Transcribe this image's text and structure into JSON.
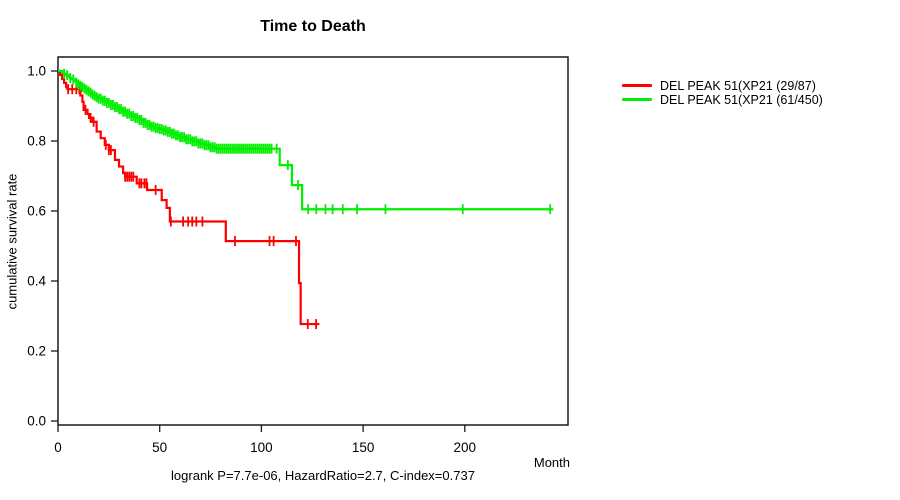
{
  "chart_data": {
    "type": "line",
    "subtype": "kaplan-meier-step-survival",
    "title": "Time to Death",
    "xlabel": "Month",
    "ylabel": "cumulative survival rate",
    "annotation": "logrank P=7.7e-06, HazardRatio=2.7, C-index=0.737",
    "xlim": [
      0,
      250
    ],
    "ylim": [
      0,
      1
    ],
    "x_ticks": [
      0,
      50,
      100,
      150,
      200
    ],
    "y_ticks": [
      0,
      0.2,
      0.4,
      0.6,
      0.8,
      1
    ],
    "grid": false,
    "legend_position": "right-outside",
    "series": [
      {
        "id": "group-1",
        "name": "DEL PEAK 51(XP21 (29/87)",
        "color": "#ff0000",
        "events_total": "29/87",
        "end_time": 128.5,
        "steps": [
          [
            0,
            1.0
          ],
          [
            1,
            0.989
          ],
          [
            2,
            0.977
          ],
          [
            3,
            0.966
          ],
          [
            4,
            0.954
          ],
          [
            4.6,
            0.948
          ],
          [
            11,
            0.93
          ],
          [
            12,
            0.912
          ],
          [
            12.6,
            0.889
          ],
          [
            14.5,
            0.877
          ],
          [
            15.3,
            0.866
          ],
          [
            17,
            0.855
          ],
          [
            19,
            0.827
          ],
          [
            21,
            0.808
          ],
          [
            23,
            0.789
          ],
          [
            25,
            0.774
          ],
          [
            28,
            0.746
          ],
          [
            30,
            0.727
          ],
          [
            32,
            0.708
          ],
          [
            33,
            0.698
          ],
          [
            38.7,
            0.679
          ],
          [
            43.8,
            0.66
          ],
          [
            51,
            0.631
          ],
          [
            53.4,
            0.609
          ],
          [
            55,
            0.57
          ],
          [
            82.5,
            0.514
          ],
          [
            118.5,
            0.394
          ],
          [
            119.3,
            0.277
          ]
        ],
        "censor_times": [
          5,
          7,
          9,
          10.5,
          13.5,
          16,
          17.5,
          23.5,
          25,
          26,
          33,
          34,
          35,
          36,
          37,
          40,
          41,
          42.5,
          43.5,
          48,
          55.5,
          61.5,
          64,
          66,
          68,
          71,
          87,
          104,
          106,
          117,
          122.8,
          126.9
        ]
      },
      {
        "id": "group-2",
        "name": "DEL PEAK 51(XP21 (61/450)",
        "color": "#00ee00",
        "events_total": "61/450",
        "end_time": 243.5,
        "steps": [
          [
            0,
            1.0
          ],
          [
            2,
            0.996
          ],
          [
            3,
            0.992
          ],
          [
            4,
            0.988
          ],
          [
            5,
            0.984
          ],
          [
            6,
            0.98
          ],
          [
            7,
            0.976
          ],
          [
            8,
            0.971
          ],
          [
            9,
            0.967
          ],
          [
            10,
            0.962
          ],
          [
            11,
            0.958
          ],
          [
            12,
            0.954
          ],
          [
            13,
            0.95
          ],
          [
            14,
            0.946
          ],
          [
            15,
            0.942
          ],
          [
            16,
            0.938
          ],
          [
            17,
            0.933
          ],
          [
            18,
            0.929
          ],
          [
            19,
            0.925
          ],
          [
            20,
            0.921
          ],
          [
            22,
            0.915
          ],
          [
            24,
            0.909
          ],
          [
            26,
            0.903
          ],
          [
            28,
            0.897
          ],
          [
            30,
            0.891
          ],
          [
            32,
            0.884
          ],
          [
            34,
            0.878
          ],
          [
            36,
            0.871
          ],
          [
            38,
            0.866
          ],
          [
            40,
            0.86
          ],
          [
            42,
            0.852
          ],
          [
            44,
            0.846
          ],
          [
            46,
            0.841
          ],
          [
            48,
            0.837
          ],
          [
            50,
            0.834
          ],
          [
            52,
            0.83
          ],
          [
            54,
            0.826
          ],
          [
            56,
            0.821
          ],
          [
            58,
            0.816
          ],
          [
            60,
            0.811
          ],
          [
            63,
            0.805
          ],
          [
            66,
            0.799
          ],
          [
            69,
            0.793
          ],
          [
            72,
            0.788
          ],
          [
            75,
            0.782
          ],
          [
            78,
            0.778
          ],
          [
            109,
            0.731
          ],
          [
            115,
            0.674
          ],
          [
            120,
            0.605
          ]
        ],
        "censor_times": [
          3,
          4.5,
          6,
          7.5,
          9,
          10,
          11,
          12,
          13,
          14,
          15,
          16,
          17,
          18,
          19,
          20,
          21,
          22,
          23,
          24,
          25,
          26,
          27,
          28,
          29,
          30,
          31,
          32,
          33,
          34,
          35,
          36,
          37,
          38,
          39,
          40,
          41,
          42,
          43,
          44,
          45,
          46,
          47,
          48,
          49,
          50,
          51,
          52,
          53,
          54,
          55,
          56,
          57,
          58,
          59,
          60,
          61,
          62,
          63,
          64,
          65,
          66,
          67,
          68,
          69,
          70,
          71,
          72,
          73,
          74,
          75,
          76,
          77,
          78,
          79,
          80,
          81,
          82,
          83,
          84,
          85,
          86,
          87,
          88,
          89,
          90,
          91,
          92,
          93,
          94,
          95,
          96,
          97,
          98,
          99,
          100,
          101,
          102,
          103,
          104,
          105,
          107.5,
          113,
          118,
          123,
          127,
          131.5,
          135,
          140,
          147,
          161,
          199,
          242
        ]
      }
    ]
  }
}
